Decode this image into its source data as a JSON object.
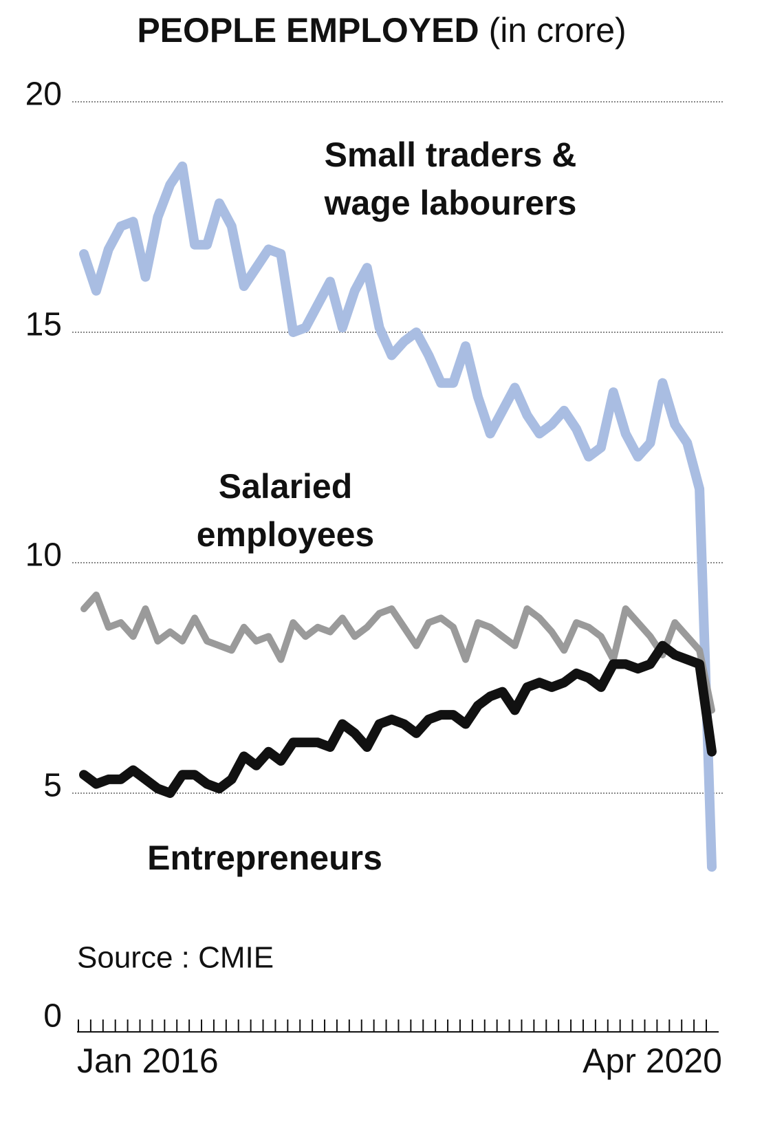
{
  "chart_data": {
    "type": "line",
    "title": "PEOPLE EMPLOYED",
    "subtitle": "(in crore)",
    "source": "Source : CMIE",
    "categories": [
      "Jan 2016",
      null,
      null,
      null,
      null,
      null,
      null,
      null,
      null,
      null,
      null,
      null,
      null,
      null,
      null,
      null,
      null,
      null,
      null,
      null,
      null,
      null,
      null,
      null,
      null,
      null,
      null,
      null,
      null,
      null,
      null,
      null,
      null,
      null,
      null,
      null,
      null,
      null,
      null,
      null,
      null,
      null,
      null,
      null,
      null,
      null,
      null,
      null,
      null,
      null,
      null,
      "Apr 2020"
    ],
    "ylim": [
      0,
      20
    ],
    "yticks": [
      0,
      5,
      10,
      15,
      20
    ],
    "grid": true,
    "series": [
      {
        "name": "Small traders & wage labourers",
        "color": "#a9bde2",
        "values": [
          16.7,
          15.9,
          16.8,
          17.3,
          17.4,
          16.2,
          17.5,
          18.2,
          18.6,
          16.9,
          16.9,
          17.8,
          17.3,
          16.0,
          16.4,
          16.8,
          16.7,
          15.0,
          15.1,
          15.6,
          16.1,
          15.1,
          15.9,
          16.4,
          15.1,
          14.5,
          14.8,
          15.0,
          14.5,
          13.9,
          13.9,
          14.7,
          13.6,
          12.8,
          13.3,
          13.8,
          13.2,
          12.8,
          13.0,
          13.3,
          12.9,
          12.3,
          12.5,
          13.7,
          12.8,
          12.3,
          12.6,
          13.9,
          13.0,
          12.6,
          11.6,
          3.4
        ]
      },
      {
        "name": "Salaried employees",
        "color": "#9a9a9a",
        "values": [
          9.0,
          9.3,
          8.6,
          8.7,
          8.4,
          9.0,
          8.3,
          8.5,
          8.3,
          8.8,
          8.3,
          8.2,
          8.1,
          8.6,
          8.3,
          8.4,
          7.9,
          8.7,
          8.4,
          8.6,
          8.5,
          8.8,
          8.4,
          8.6,
          8.9,
          9.0,
          8.6,
          8.2,
          8.7,
          8.8,
          8.6,
          7.9,
          8.7,
          8.6,
          8.4,
          8.2,
          9.0,
          8.8,
          8.5,
          8.1,
          8.7,
          8.6,
          8.4,
          7.9,
          9.0,
          8.7,
          8.4,
          8.0,
          8.7,
          8.4,
          8.1,
          6.8
        ]
      },
      {
        "name": "Entrepreneurs",
        "color": "#111111",
        "values": [
          5.4,
          5.2,
          5.3,
          5.3,
          5.5,
          5.3,
          5.1,
          5.0,
          5.4,
          5.4,
          5.2,
          5.1,
          5.3,
          5.8,
          5.6,
          5.9,
          5.7,
          6.1,
          6.1,
          6.1,
          6.0,
          6.5,
          6.3,
          6.0,
          6.5,
          6.6,
          6.5,
          6.3,
          6.6,
          6.7,
          6.7,
          6.5,
          6.9,
          7.1,
          7.2,
          6.8,
          7.3,
          7.4,
          7.3,
          7.4,
          7.6,
          7.5,
          7.3,
          7.8,
          7.8,
          7.7,
          7.8,
          8.2,
          8.0,
          7.9,
          7.8,
          5.9
        ]
      }
    ]
  }
}
